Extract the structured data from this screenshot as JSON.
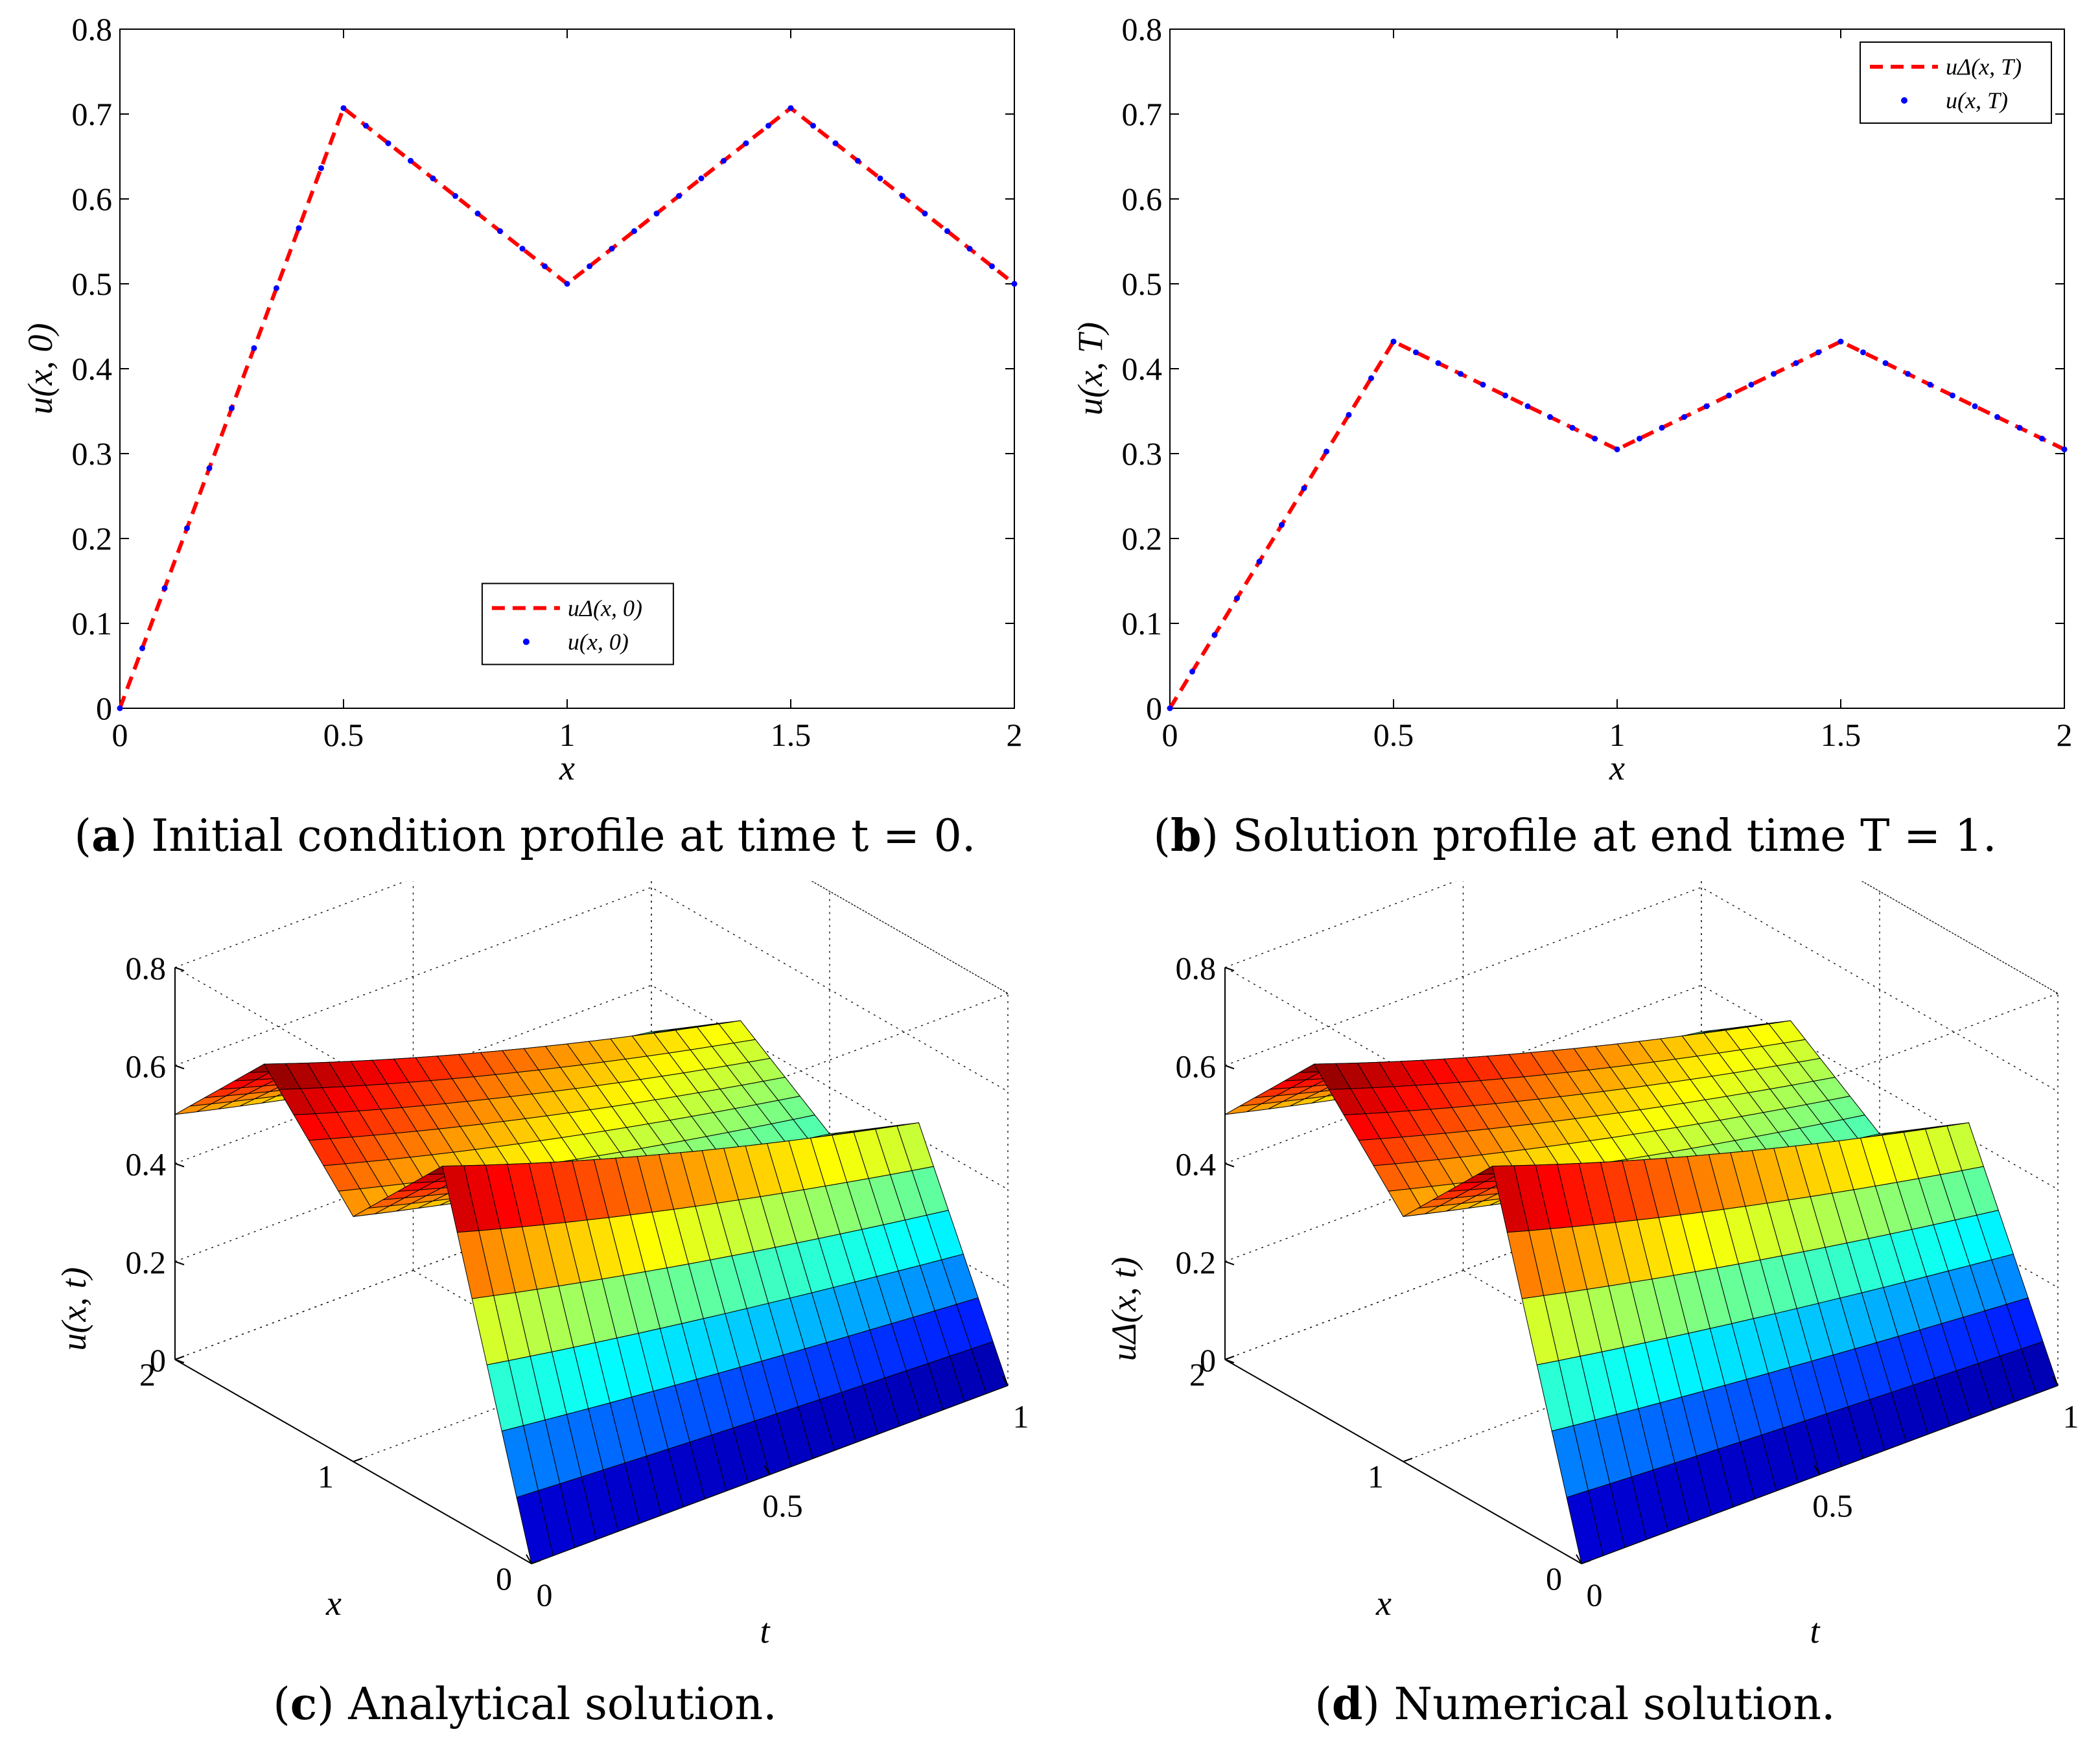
{
  "chart_data": [
    {
      "id": "a",
      "type": "line",
      "caption_letter": "a",
      "caption_text": "Initial condition profile at time t = 0.",
      "xlabel": "x",
      "ylabel": "u(x, 0)",
      "xlim": [
        0,
        2
      ],
      "ylim": [
        0,
        0.8
      ],
      "xticks": [
        "0",
        "0.5",
        "1",
        "1.5",
        "2"
      ],
      "yticks": [
        "0",
        "0.1",
        "0.2",
        "0.3",
        "0.4",
        "0.5",
        "0.6",
        "0.7",
        "0.8"
      ],
      "legend_position": "bottom-center",
      "series": [
        {
          "name": "uΔ(x, 0)",
          "style": "dashed",
          "color": "#ff0000",
          "x": [
            0,
            0.5,
            1,
            1.5,
            2
          ],
          "y": [
            0,
            0.707,
            0.5,
            0.707,
            0.5
          ]
        },
        {
          "name": "u(x, 0)",
          "style": "dots",
          "color": "#0000ff",
          "x": [
            0,
            0.5,
            1,
            1.5,
            2
          ],
          "y": [
            0,
            0.707,
            0.5,
            0.707,
            0.5
          ]
        }
      ]
    },
    {
      "id": "b",
      "type": "line",
      "caption_letter": "b",
      "caption_text": "Solution profile at end time T = 1.",
      "xlabel": "x",
      "ylabel": "u(x, T)",
      "xlim": [
        0,
        2
      ],
      "ylim": [
        0,
        0.8
      ],
      "xticks": [
        "0",
        "0.5",
        "1",
        "1.5",
        "2"
      ],
      "yticks": [
        "0",
        "0.1",
        "0.2",
        "0.3",
        "0.4",
        "0.5",
        "0.6",
        "0.7",
        "0.8"
      ],
      "legend_position": "top-right",
      "series": [
        {
          "name": "uΔ(x, T)",
          "style": "dashed",
          "color": "#ff0000",
          "x": [
            0,
            0.5,
            1,
            1.5,
            2
          ],
          "y": [
            0,
            0.432,
            0.305,
            0.432,
            0.305
          ]
        },
        {
          "name": "u(x, T)",
          "style": "dots",
          "color": "#0000ff",
          "x": [
            0,
            0.5,
            1,
            1.5,
            2
          ],
          "y": [
            0,
            0.432,
            0.305,
            0.432,
            0.305
          ]
        }
      ]
    },
    {
      "id": "c",
      "type": "surface",
      "caption_letter": "c",
      "caption_text": "Analytical solution.",
      "xlabel": "x",
      "ylabel": "t",
      "zlabel": "u(x, t)",
      "xlim": [
        0,
        2
      ],
      "tlim": [
        0,
        1
      ],
      "zlim": [
        0,
        0.8
      ],
      "xticks": [
        "0",
        "1",
        "2"
      ],
      "tticks": [
        "0",
        "0.5",
        "1"
      ],
      "zticks": [
        "0",
        "0.2",
        "0.4",
        "0.6",
        "0.8"
      ],
      "profile_x": [
        0,
        0.5,
        1,
        1.5,
        2
      ],
      "profile_t0": [
        0,
        0.707,
        0.5,
        0.707,
        0.5
      ],
      "profile_t1": [
        0,
        0.432,
        0.305,
        0.432,
        0.305
      ]
    },
    {
      "id": "d",
      "type": "surface",
      "caption_letter": "d",
      "caption_text": "Numerical solution.",
      "xlabel": "x",
      "ylabel": "t",
      "zlabel": "uΔ(x, t)",
      "xlim": [
        0,
        2
      ],
      "tlim": [
        0,
        1
      ],
      "zlim": [
        0,
        0.8
      ],
      "xticks": [
        "0",
        "1",
        "2"
      ],
      "tticks": [
        "0",
        "0.5",
        "1"
      ],
      "zticks": [
        "0",
        "0.2",
        "0.4",
        "0.6",
        "0.8"
      ],
      "profile_x": [
        0,
        0.5,
        1,
        1.5,
        2
      ],
      "profile_t0": [
        0,
        0.707,
        0.5,
        0.707,
        0.5
      ],
      "profile_t1": [
        0,
        0.432,
        0.305,
        0.432,
        0.305
      ]
    }
  ]
}
